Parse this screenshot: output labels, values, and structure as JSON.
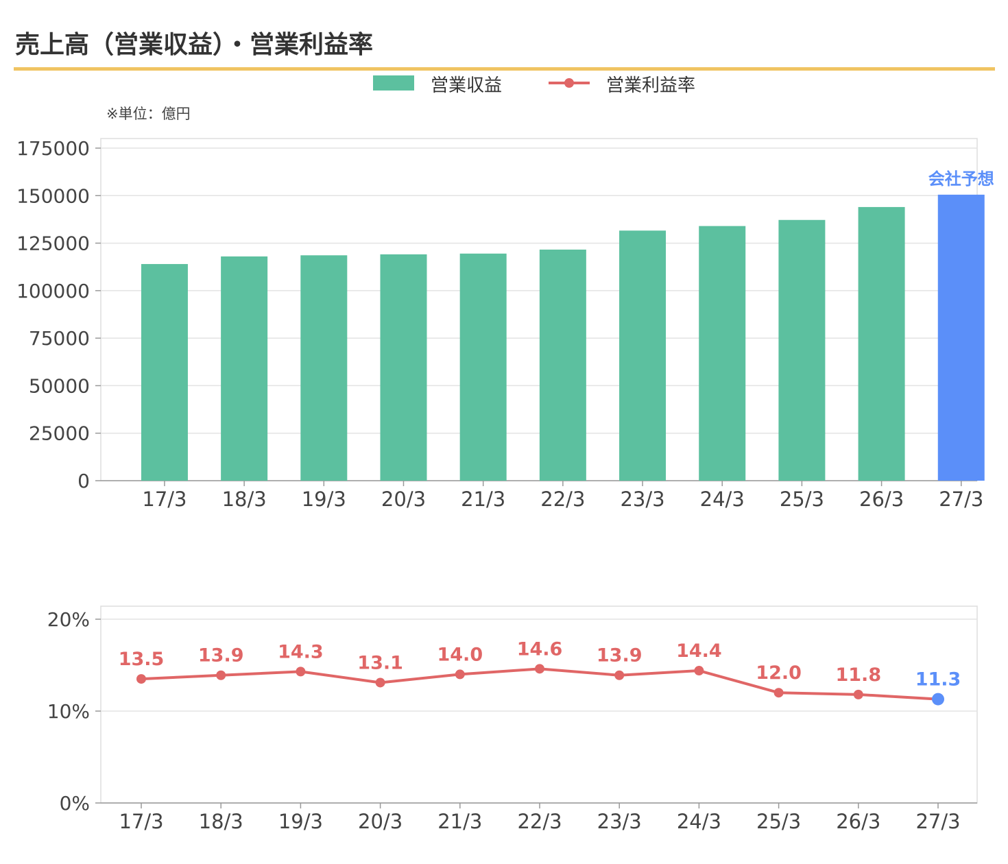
{
  "title": "売上高（営業収益）・営業利益率",
  "unit_note": "※単位：億円",
  "legend": {
    "bar_label": "営業収益",
    "line_label": "営業利益率"
  },
  "colors": {
    "bar": "#5cc09f",
    "forecast": "#5b8ff9",
    "line": "#e06666",
    "title_rule": "#f0c462"
  },
  "chart_data": [
    {
      "type": "bar",
      "categories": [
        "17/3",
        "18/3",
        "19/3",
        "20/3",
        "21/3",
        "22/3",
        "23/3",
        "24/3",
        "25/3",
        "26/3",
        "27/3"
      ],
      "series": [
        {
          "name": "営業収益",
          "values": [
            114000,
            118000,
            118600,
            119100,
            119500,
            121600,
            131600,
            134000,
            137200,
            144000,
            150500
          ]
        }
      ],
      "ylim": [
        0,
        175000
      ],
      "yticks": [
        "0",
        "25000",
        "50000",
        "75000",
        "100000",
        "125000",
        "150000",
        "175000"
      ],
      "ytick_values": [
        0,
        25000,
        50000,
        75000,
        100000,
        125000,
        150000,
        175000
      ],
      "forecast_index": 10,
      "annotation": "会社予想",
      "grid": true
    },
    {
      "type": "line",
      "categories": [
        "17/3",
        "18/3",
        "19/3",
        "20/3",
        "21/3",
        "22/3",
        "23/3",
        "24/3",
        "25/3",
        "26/3",
        "27/3"
      ],
      "series": [
        {
          "name": "営業利益率",
          "values": [
            13.5,
            13.9,
            14.3,
            13.1,
            14.0,
            14.6,
            13.9,
            14.4,
            12.0,
            11.8,
            11.3
          ],
          "labels": [
            "13.5",
            "13.9",
            "14.3",
            "13.1",
            "14.0",
            "14.6",
            "13.9",
            "14.4",
            "12.0",
            "11.8",
            "11.3"
          ]
        }
      ],
      "ylim": [
        0,
        20
      ],
      "yticks": [
        "0%",
        "10%",
        "20%"
      ],
      "ytick_values": [
        0,
        10,
        20
      ],
      "forecast_index": 10,
      "grid": true
    }
  ]
}
